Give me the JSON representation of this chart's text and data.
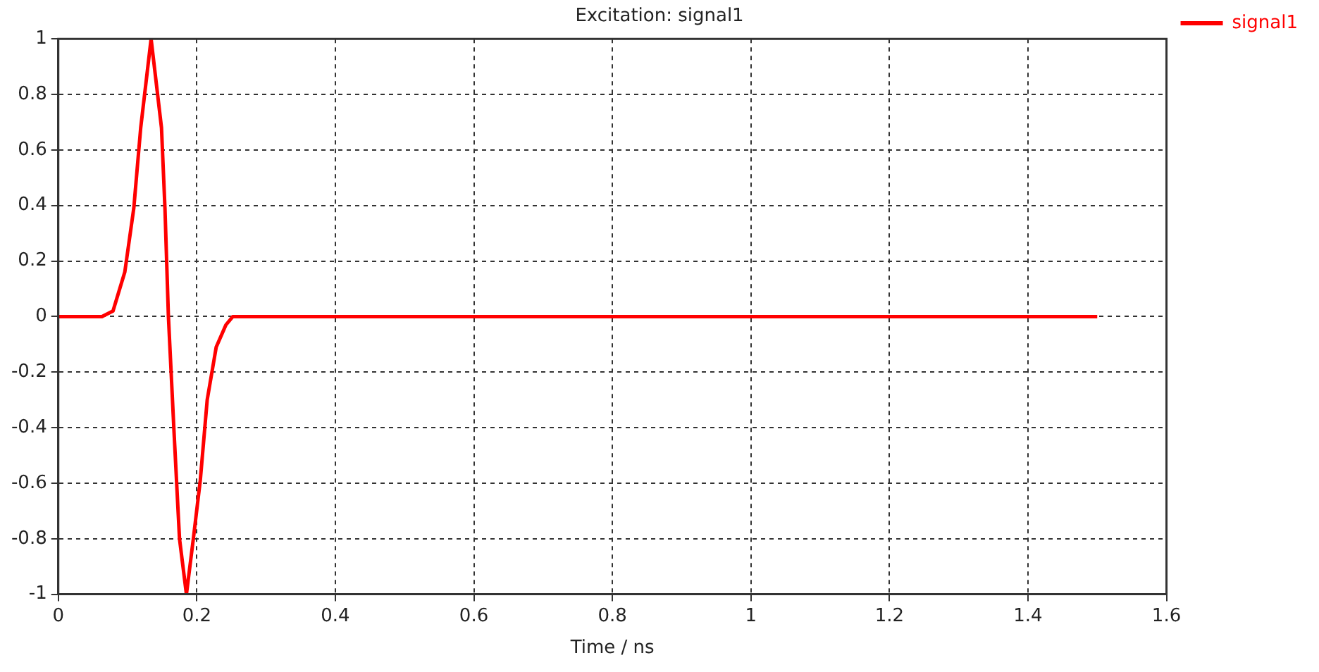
{
  "chart_data": {
    "type": "line",
    "title": "Excitation: signal1",
    "xlabel": "Time / ns",
    "series": [
      {
        "name": "signal1",
        "color": "#ff0000",
        "x": [
          0,
          0.063,
          0.079,
          0.096,
          0.109,
          0.119,
          0.134,
          0.149,
          0.154,
          0.159,
          0.167,
          0.175,
          0.185,
          0.195,
          0.205,
          0.215,
          0.228,
          0.242,
          0.252,
          1.5
        ],
        "values": [
          0,
          0,
          0.02,
          0.16,
          0.39,
          0.68,
          1,
          0.68,
          0.39,
          0,
          -0.41,
          -0.8,
          -1,
          -0.8,
          -0.59,
          -0.3,
          -0.11,
          -0.03,
          0,
          0
        ]
      }
    ],
    "xlim": [
      0,
      1.6
    ],
    "xticks": [
      0,
      0.2,
      0.4,
      0.6,
      0.8,
      1,
      1.2,
      1.4,
      1.6
    ],
    "ylim": [
      -1,
      1
    ],
    "yticks": [
      -1,
      -0.8,
      -0.6,
      -0.4,
      -0.2,
      0,
      0.2,
      0.4,
      0.6,
      0.8,
      1
    ],
    "grid": true,
    "legend": "top right",
    "line_style": "solid",
    "marker": "none"
  }
}
